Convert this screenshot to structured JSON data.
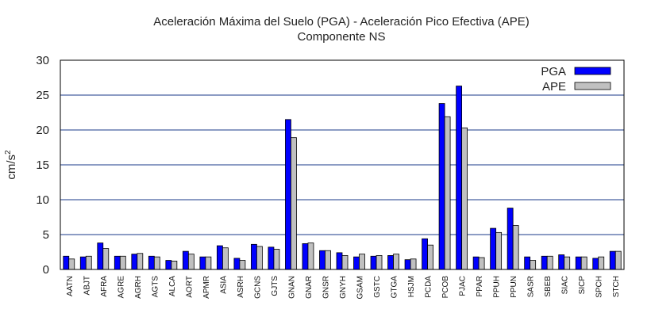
{
  "chart_data": {
    "type": "bar",
    "title": "Aceleración Máxima del Suelo (PGA) -  Aceleración Pico Efectiva (APE)",
    "subtitle": "Componente NS",
    "ylabel": "cm/s",
    "ylabel_superscript": "2",
    "ylim": [
      0,
      30
    ],
    "yticks": [
      "0",
      "5",
      "10",
      "15",
      "20",
      "25",
      "30"
    ],
    "grid": true,
    "legend_position": "top-right",
    "categories": [
      "AATN",
      "ABJT",
      "AFRA",
      "AGRE",
      "AGRH",
      "AGTS",
      "ALCA",
      "AORT",
      "APMR",
      "ASIA",
      "ASRH",
      "GCNS",
      "GJTS",
      "GNAN",
      "GNAR",
      "GNSR",
      "GNYH",
      "GSAM",
      "GSTC",
      "GTGA",
      "HSJM",
      "PCDA",
      "PCOB",
      "PJAC",
      "PPAR",
      "PPUH",
      "PPUN",
      "SASR",
      "SBEB",
      "SIAC",
      "SICP",
      "SPCH",
      "STCH"
    ],
    "series": [
      {
        "name": "PGA",
        "color": "#0000ff",
        "values": [
          1.9,
          1.8,
          3.8,
          1.9,
          2.2,
          1.9,
          1.3,
          2.6,
          1.8,
          3.4,
          1.6,
          3.6,
          3.2,
          21.5,
          3.7,
          2.7,
          2.4,
          1.8,
          1.9,
          2.0,
          1.4,
          4.4,
          23.8,
          26.3,
          1.8,
          5.9,
          8.8,
          1.8,
          1.9,
          2.1,
          1.8,
          1.6,
          2.6
        ]
      },
      {
        "name": "APE",
        "color": "#c0c0c0",
        "values": [
          1.5,
          1.9,
          3.0,
          1.9,
          2.3,
          1.8,
          1.2,
          2.2,
          1.8,
          3.1,
          1.3,
          3.3,
          2.9,
          18.9,
          3.8,
          2.7,
          2.0,
          2.2,
          2.0,
          2.2,
          1.5,
          3.5,
          21.9,
          20.3,
          1.7,
          5.3,
          6.3,
          1.3,
          1.9,
          1.8,
          1.8,
          1.8,
          2.6
        ]
      }
    ]
  }
}
